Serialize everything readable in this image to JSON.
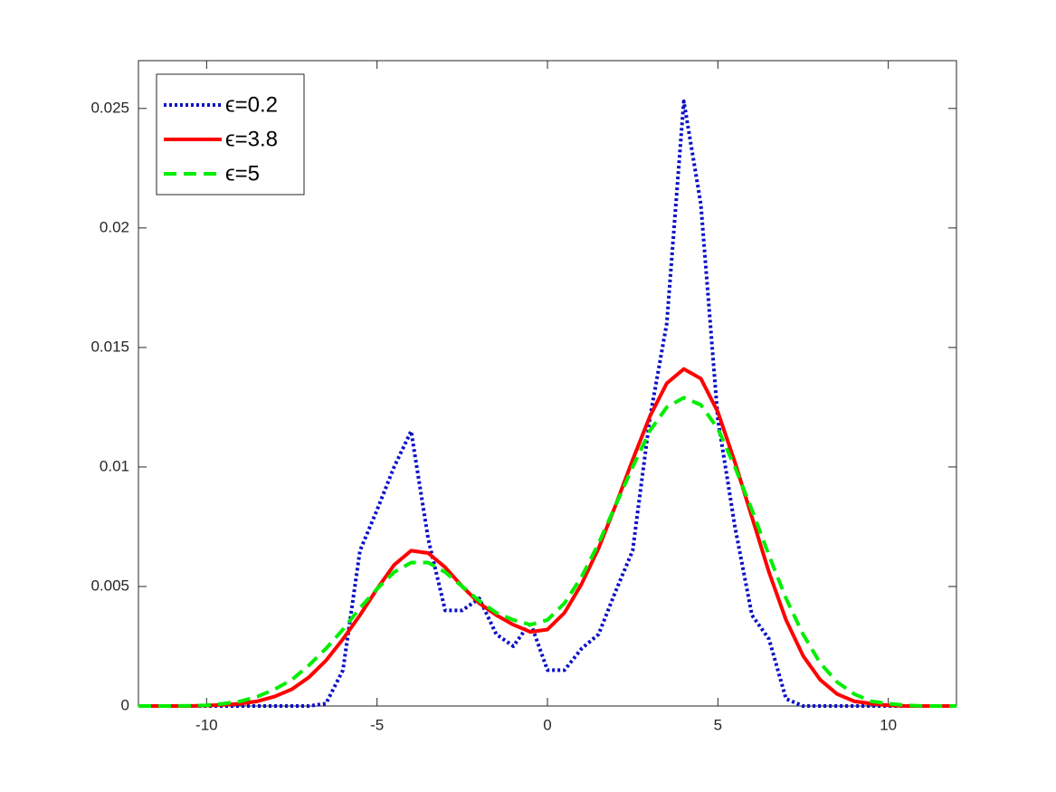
{
  "chart_data": {
    "type": "line",
    "x": [
      -12,
      -11.5,
      -11,
      -10.5,
      -10,
      -9.5,
      -9,
      -8.5,
      -8,
      -7.5,
      -7,
      -6.5,
      -6,
      -5.5,
      -5,
      -4.5,
      -4,
      -3.5,
      -3,
      -2.5,
      -2,
      -1.5,
      -1,
      -0.5,
      0,
      0.5,
      1,
      1.5,
      2,
      2.5,
      3,
      3.5,
      4,
      4.5,
      5,
      5.5,
      6,
      6.5,
      7,
      7.5,
      8,
      8.5,
      9,
      9.5,
      10,
      10.5,
      11,
      11.5,
      12
    ],
    "series": [
      {
        "name": "ϵ=0.2",
        "color": "#0a0fc8",
        "style": "dotted",
        "values": [
          0,
          0,
          0,
          0,
          0,
          0,
          0,
          0,
          0,
          0,
          0,
          0.0001,
          0.0015,
          0.0065,
          0.0082,
          0.01,
          0.0115,
          0.007,
          0.004,
          0.004,
          0.0045,
          0.003,
          0.0025,
          0.0035,
          0.0015,
          0.0015,
          0.0024,
          0.003,
          0.0048,
          0.0065,
          0.012,
          0.016,
          0.0253,
          0.021,
          0.012,
          0.0075,
          0.0038,
          0.0028,
          0.0003,
          0,
          0,
          0,
          0,
          0,
          0,
          0,
          0,
          0,
          0
        ]
      },
      {
        "name": "ϵ=3.8",
        "color": "#ff0000",
        "style": "solid",
        "values": [
          0,
          0,
          0,
          0,
          2e-05,
          5e-05,
          0.0001,
          0.0002,
          0.0004,
          0.0007,
          0.0012,
          0.0019,
          0.0028,
          0.0038,
          0.0049,
          0.0059,
          0.0065,
          0.0064,
          0.0058,
          0.005,
          0.0043,
          0.0038,
          0.0034,
          0.0031,
          0.0032,
          0.0039,
          0.0051,
          0.0066,
          0.0084,
          0.0103,
          0.0121,
          0.0135,
          0.0141,
          0.0137,
          0.0123,
          0.0102,
          0.0079,
          0.0056,
          0.0036,
          0.0021,
          0.0011,
          0.0005,
          0.0002,
          0.0001,
          3e-05,
          0,
          0,
          0,
          0
        ]
      },
      {
        "name": "ϵ=5",
        "color": "#00ee00",
        "style": "dashed",
        "values": [
          0,
          0,
          0,
          1e-05,
          3e-05,
          0.0001,
          0.0002,
          0.0004,
          0.0007,
          0.0011,
          0.0017,
          0.0024,
          0.0032,
          0.0041,
          0.0049,
          0.0056,
          0.006,
          0.006,
          0.0056,
          0.005,
          0.0044,
          0.0039,
          0.0036,
          0.0034,
          0.0036,
          0.0043,
          0.0054,
          0.0068,
          0.0084,
          0.01,
          0.0115,
          0.0125,
          0.0129,
          0.0126,
          0.0116,
          0.01,
          0.0082,
          0.0063,
          0.0045,
          0.003,
          0.0018,
          0.001,
          0.0005,
          0.0002,
          0.0001,
          3e-05,
          0,
          0,
          0
        ]
      }
    ],
    "xlim": [
      -12,
      12
    ],
    "xticks": [
      -10,
      -5,
      0,
      5,
      10
    ],
    "ylim": [
      0,
      0.027
    ],
    "yticks": [
      0,
      0.005,
      0.01,
      0.015,
      0.02,
      0.025
    ],
    "legend": "northwest",
    "box": true
  }
}
